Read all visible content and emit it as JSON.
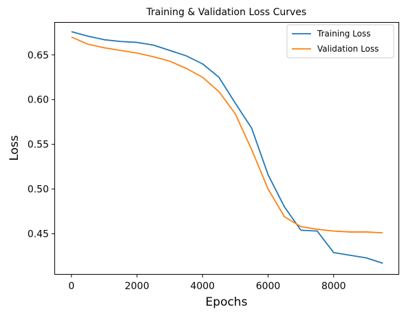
{
  "chart_data": {
    "type": "line",
    "title": "Training & Validation Loss Curves",
    "xlabel": "Epochs",
    "ylabel": "Loss",
    "xlim": [
      -500,
      10000
    ],
    "ylim": [
      0.405,
      0.686
    ],
    "xticks": [
      0,
      2000,
      4000,
      6000,
      8000
    ],
    "xtick_labels": [
      "0",
      "2000",
      "4000",
      "6000",
      "8000"
    ],
    "yticks": [
      0.45,
      0.5,
      0.55,
      0.6,
      0.65
    ],
    "ytick_labels": [
      "0.45",
      "0.50",
      "0.55",
      "0.60",
      "0.65"
    ],
    "grid": false,
    "legend_position": "top-right",
    "x": [
      0,
      500,
      1000,
      1500,
      2000,
      2500,
      3000,
      3500,
      4000,
      4500,
      5000,
      5500,
      6000,
      6500,
      7000,
      7500,
      8000,
      8500,
      9000,
      9500
    ],
    "series": [
      {
        "name": "Training Loss",
        "color": "#1f77b4",
        "values": [
          0.676,
          0.671,
          0.667,
          0.665,
          0.664,
          0.661,
          0.655,
          0.649,
          0.64,
          0.625,
          0.596,
          0.568,
          0.516,
          0.48,
          0.454,
          0.453,
          0.429,
          0.426,
          0.423,
          0.417
        ]
      },
      {
        "name": "Validation Loss",
        "color": "#ff7f0e",
        "values": [
          0.67,
          0.662,
          0.658,
          0.655,
          0.652,
          0.648,
          0.643,
          0.635,
          0.625,
          0.609,
          0.584,
          0.544,
          0.5,
          0.469,
          0.458,
          0.455,
          0.453,
          0.452,
          0.452,
          0.451
        ]
      }
    ]
  }
}
